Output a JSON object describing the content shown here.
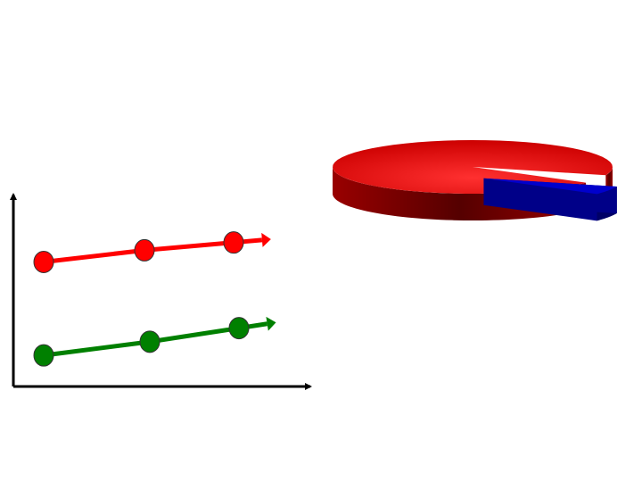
{
  "chart_data": [
    {
      "type": "line",
      "ylim": [
        0,
        100
      ],
      "series": [
        {
          "color": "#ff0000",
          "values": [
            64,
            70,
            74
          ]
        },
        {
          "color": "#008000",
          "values": [
            16,
            23,
            30
          ]
        }
      ]
    },
    {
      "type": "pie",
      "values": [
        95,
        5
      ],
      "colors": [
        "#ff0000",
        "#0000cc"
      ]
    }
  ]
}
